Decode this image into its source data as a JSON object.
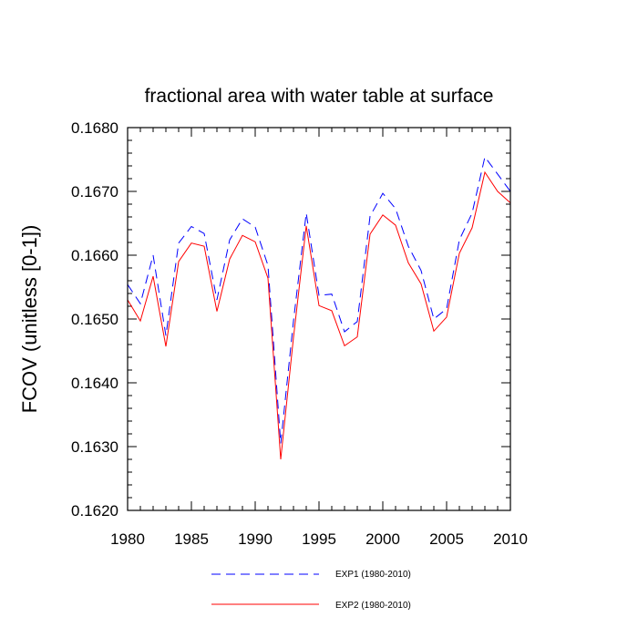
{
  "chart_data": {
    "type": "line",
    "title": "fractional area with water table at surface",
    "xlabel": "",
    "ylabel": "FCOV  (unitless [0-1])",
    "xlim": [
      1980,
      2010
    ],
    "ylim": [
      0.162,
      0.168
    ],
    "xticks": [
      1980,
      1985,
      1990,
      1995,
      2000,
      2005,
      2010
    ],
    "yticks": [
      0.162,
      0.163,
      0.164,
      0.165,
      0.166,
      0.167,
      0.168
    ],
    "xtick_labels": [
      "1980",
      "1985",
      "1990",
      "1995",
      "2000",
      "2005",
      "2010"
    ],
    "ytick_labels": [
      "0.1620",
      "0.1630",
      "0.1640",
      "0.1650",
      "0.1660",
      "0.1670",
      "0.1680"
    ],
    "x": [
      1980,
      1981,
      1982,
      1983,
      1984,
      1985,
      1986,
      1987,
      1988,
      1989,
      1990,
      1991,
      1992,
      1993,
      1994,
      1995,
      1996,
      1997,
      1998,
      1999,
      2000,
      2001,
      2002,
      2003,
      2004,
      2005,
      2006,
      2007,
      2008,
      2009,
      2010
    ],
    "series": [
      {
        "name": "EXP1 (1980-2010)",
        "color": "#0000ff",
        "style": "dashed",
        "values": [
          0.16554,
          0.16524,
          0.166,
          0.16474,
          0.16619,
          0.16645,
          0.16634,
          0.1653,
          0.16624,
          0.16657,
          0.16644,
          0.16584,
          0.16305,
          0.16497,
          0.16666,
          0.16537,
          0.16539,
          0.1648,
          0.16496,
          0.16661,
          0.16697,
          0.16673,
          0.16614,
          0.16576,
          0.165,
          0.16516,
          0.16624,
          0.16666,
          0.16754,
          0.16727,
          0.167
        ]
      },
      {
        "name": "EXP2 (1980-2010)",
        "color": "#ff0000",
        "style": "solid",
        "values": [
          0.1653,
          0.16497,
          0.16567,
          0.16457,
          0.1659,
          0.16619,
          0.16614,
          0.16512,
          0.16594,
          0.16631,
          0.16621,
          0.16564,
          0.1628,
          0.16471,
          0.16646,
          0.16521,
          0.16513,
          0.16458,
          0.16472,
          0.16633,
          0.16663,
          0.16647,
          0.16588,
          0.16555,
          0.16481,
          0.16503,
          0.16603,
          0.16643,
          0.1673,
          0.167,
          0.16682
        ]
      }
    ],
    "legend_position": "bottom"
  }
}
